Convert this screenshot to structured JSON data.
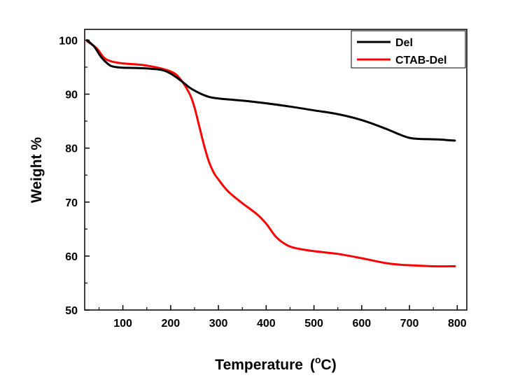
{
  "chart_data": {
    "type": "line",
    "xlabel": "Temperature",
    "xlabel_unit_degree": "o",
    "xlabel_unit_letter": "C",
    "ylabel": "Weight %",
    "xlim": [
      20,
      820
    ],
    "ylim": [
      50,
      102
    ],
    "x_ticks": [
      100,
      200,
      300,
      400,
      500,
      600,
      700,
      800
    ],
    "x_tick_labels": [
      "100",
      "200",
      "300",
      "400",
      "500",
      "600",
      "700",
      "800"
    ],
    "y_ticks": [
      50,
      60,
      70,
      80,
      90,
      100
    ],
    "y_tick_labels": [
      "50",
      "60",
      "70",
      "80",
      "90",
      "100"
    ],
    "grid": false,
    "legend_position": "top-right",
    "series": [
      {
        "name": "Del",
        "color": "#000000",
        "x": [
          25,
          40,
          55,
          70,
          80,
          100,
          140,
          180,
          200,
          220,
          240,
          260,
          280,
          300,
          350,
          400,
          450,
          500,
          550,
          600,
          650,
          680,
          700,
          720,
          760,
          795
        ],
        "y": [
          100,
          98.8,
          96.8,
          95.5,
          95.1,
          94.9,
          94.8,
          94.5,
          93.8,
          92.6,
          91.2,
          90.2,
          89.5,
          89.2,
          88.8,
          88.3,
          87.7,
          87,
          86.3,
          85.2,
          83.6,
          82.5,
          81.9,
          81.7,
          81.6,
          81.4
        ]
      },
      {
        "name": "CTAB-Del",
        "color": "#ff0000",
        "x": [
          25,
          45,
          60,
          75,
          100,
          150,
          200,
          220,
          240,
          250,
          260,
          270,
          280,
          290,
          300,
          320,
          350,
          380,
          400,
          420,
          440,
          460,
          500,
          550,
          600,
          650,
          680,
          700,
          750,
          795
        ],
        "y": [
          99.8,
          98.5,
          96.8,
          96.1,
          95.7,
          95.3,
          94.2,
          92.8,
          90,
          87.5,
          84,
          80.5,
          77.5,
          75.5,
          74.2,
          72,
          69.8,
          67.8,
          66,
          63.6,
          62.2,
          61.5,
          60.9,
          60.4,
          59.6,
          58.7,
          58.4,
          58.3,
          58.1,
          58.1
        ]
      }
    ]
  }
}
